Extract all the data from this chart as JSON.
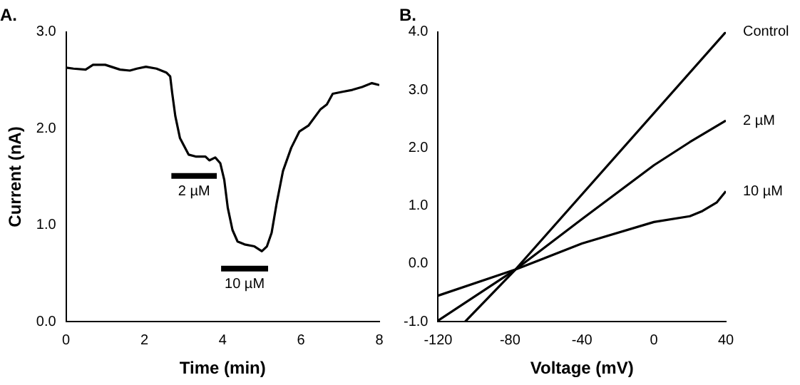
{
  "chart_data": [
    {
      "type": "line",
      "title": "A.",
      "xlabel": "Time (min)",
      "ylabel": "Current (nA)",
      "xlim": [
        0,
        8
      ],
      "xticks": [
        0,
        2,
        4,
        6,
        8
      ],
      "ylim": [
        0,
        3
      ],
      "yticks": [
        {
          "value": 0,
          "label": "0.0"
        },
        {
          "value": 1,
          "label": "1.0"
        },
        {
          "value": 2,
          "label": "2.0"
        },
        {
          "value": 3,
          "label": "3.0"
        }
      ],
      "grid": false,
      "legend": false,
      "series": [
        {
          "color": "#000000",
          "x": [
            0,
            0.19,
            0.5,
            0.69,
            1.0,
            1.38,
            1.63,
            1.81,
            2.04,
            2.31,
            2.56,
            2.66,
            2.71,
            2.79,
            2.91,
            3.13,
            3.31,
            3.56,
            3.66,
            3.81,
            3.94,
            4.04,
            4.13,
            4.25,
            4.38,
            4.56,
            4.81,
            5.0,
            5.13,
            5.25,
            5.38,
            5.54,
            5.75,
            5.96,
            6.19,
            6.5,
            6.66,
            6.81,
            7.06,
            7.31,
            7.56,
            7.81,
            8.0
          ],
          "values": [
            2.63,
            2.62,
            2.61,
            2.66,
            2.66,
            2.61,
            2.6,
            2.62,
            2.64,
            2.62,
            2.58,
            2.54,
            2.37,
            2.13,
            1.9,
            1.73,
            1.71,
            1.71,
            1.67,
            1.7,
            1.64,
            1.47,
            1.18,
            0.95,
            0.83,
            0.8,
            0.78,
            0.73,
            0.78,
            0.92,
            1.23,
            1.56,
            1.8,
            1.97,
            2.03,
            2.2,
            2.25,
            2.36,
            2.38,
            2.4,
            2.43,
            2.47,
            2.45
          ]
        },
        {
          "color": "#000000",
          "x": [
            2.69,
            3.85
          ],
          "values": [
            1.51,
            1.51
          ]
        },
        {
          "color": "#000000",
          "x": [
            3.96,
            5.16
          ],
          "values": [
            0.55,
            0.55
          ]
        }
      ],
      "annotations": [
        {
          "text": "2 µM",
          "x": 3.27,
          "y": 1.51
        },
        {
          "text": "10 µM",
          "x": 4.56,
          "y": 0.55
        }
      ]
    },
    {
      "type": "line",
      "title": "B.",
      "xlabel": "Voltage (mV)",
      "xlim": [
        -120,
        40
      ],
      "xticks": [
        -120,
        -80,
        -40,
        0,
        40
      ],
      "ylim": [
        -1,
        4
      ],
      "yticks": [
        {
          "value": -1,
          "label": "-1.0"
        },
        {
          "value": 0,
          "label": "0.0"
        },
        {
          "value": 1,
          "label": "1.0"
        },
        {
          "value": 2,
          "label": "2.0"
        },
        {
          "value": 3,
          "label": "3.0"
        },
        {
          "value": 4,
          "label": "4.0"
        }
      ],
      "grid": false,
      "legend": false,
      "series": [
        {
          "name": "Control",
          "color": "#000000",
          "x": [
            -105,
            -77,
            40
          ],
          "values": [
            -1.0,
            -0.1,
            4.0
          ]
        },
        {
          "name": "2 µM",
          "color": "#000000",
          "x": [
            -120,
            -77,
            -40,
            0,
            20,
            40
          ],
          "values": [
            -0.98,
            -0.1,
            0.77,
            1.7,
            2.1,
            2.47
          ]
        },
        {
          "name": "10 µM",
          "color": "#000000",
          "x": [
            -120,
            -77,
            -40,
            0,
            20,
            27,
            35,
            40
          ],
          "values": [
            -0.55,
            -0.1,
            0.35,
            0.72,
            0.82,
            0.91,
            1.06,
            1.25
          ]
        }
      ]
    }
  ]
}
